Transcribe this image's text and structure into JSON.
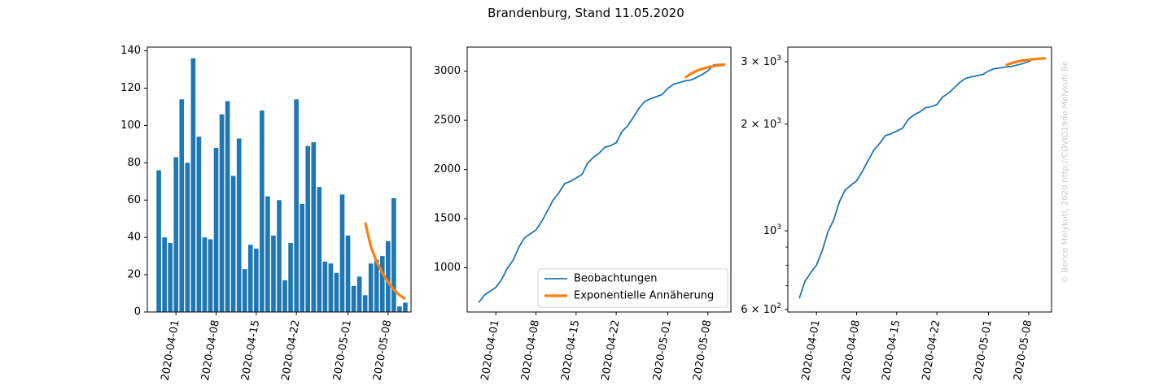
{
  "figure": {
    "title": "Brandenburg, Stand 11.05.2020",
    "watermark": "© Bence Mélykúti, 2020  http://COVID19de.Melykuti.Be"
  },
  "colors": {
    "observed": "#1f77b4",
    "fit": "#ff7f0e"
  },
  "chart_data": [
    {
      "type": "bar",
      "name": "daily-new-cases",
      "x": [
        "2020-03-29",
        "2020-03-30",
        "2020-03-31",
        "2020-04-01",
        "2020-04-02",
        "2020-04-03",
        "2020-04-04",
        "2020-04-05",
        "2020-04-06",
        "2020-04-07",
        "2020-04-08",
        "2020-04-09",
        "2020-04-10",
        "2020-04-11",
        "2020-04-12",
        "2020-04-13",
        "2020-04-14",
        "2020-04-15",
        "2020-04-16",
        "2020-04-17",
        "2020-04-18",
        "2020-04-19",
        "2020-04-20",
        "2020-04-21",
        "2020-04-22",
        "2020-04-23",
        "2020-04-24",
        "2020-04-25",
        "2020-04-26",
        "2020-04-27",
        "2020-04-28",
        "2020-04-29",
        "2020-04-30",
        "2020-05-01",
        "2020-05-02",
        "2020-05-03",
        "2020-05-04",
        "2020-05-05",
        "2020-05-06",
        "2020-05-07",
        "2020-05-08",
        "2020-05-09",
        "2020-05-10",
        "2020-05-11"
      ],
      "values": [
        76,
        40,
        37,
        83,
        114,
        80,
        136,
        94,
        40,
        39,
        88,
        106,
        113,
        73,
        93,
        23,
        36,
        34,
        108,
        62,
        41,
        60,
        17,
        37,
        114,
        58,
        89,
        91,
        67,
        27,
        26,
        21,
        63,
        41,
        14,
        19,
        9,
        26,
        28,
        30,
        38,
        61,
        3,
        5
      ],
      "fit_x": [
        "2020-05-04",
        "2020-05-05",
        "2020-05-06",
        "2020-05-07",
        "2020-05-08",
        "2020-05-09",
        "2020-05-10",
        "2020-05-11"
      ],
      "fit_values": [
        48,
        35,
        27,
        21,
        16,
        12,
        9,
        7
      ],
      "x_tick_labels": [
        "2020-04-01",
        "2020-04-08",
        "2020-04-15",
        "2020-04-22",
        "2020-05-01",
        "2020-05-08"
      ],
      "y_ticks": [
        0,
        20,
        40,
        60,
        80,
        100,
        120,
        140
      ],
      "ylim": [
        0,
        142
      ],
      "xlim": [
        "2020-03-27",
        "2020-05-12"
      ]
    },
    {
      "type": "line",
      "name": "cumulative-linear",
      "legend": {
        "placement": "lower-right",
        "entries": [
          "Beobachtungen",
          "Exponentielle Annäherung"
        ]
      },
      "x_tick_labels": [
        "2020-04-01",
        "2020-04-08",
        "2020-04-15",
        "2020-04-22",
        "2020-05-01",
        "2020-05-08"
      ],
      "y_ticks": [
        1000,
        1500,
        2000,
        2500,
        3000
      ],
      "ylim": [
        550,
        3245
      ],
      "xlim": [
        "2020-03-27",
        "2020-05-12"
      ]
    },
    {
      "type": "line",
      "name": "cumulative-log",
      "scale": "log",
      "x_tick_labels": [
        "2020-04-01",
        "2020-04-08",
        "2020-04-15",
        "2020-04-22",
        "2020-05-01",
        "2020-05-08"
      ],
      "y_ticks": [
        {
          "value": 600,
          "mantissa": "6",
          "exponent": "2"
        },
        {
          "value": 1000,
          "mantissa": "",
          "exponent": "3"
        },
        {
          "value": 2000,
          "mantissa": "2",
          "exponent": "3"
        },
        {
          "value": 3000,
          "mantissa": "3",
          "exponent": "3"
        }
      ],
      "minor_ticks": [
        700,
        800,
        900
      ],
      "ylim": [
        590,
        3300
      ],
      "xlim": [
        "2020-03-27",
        "2020-05-12"
      ]
    }
  ],
  "cumulative": {
    "x": [
      "2020-03-29",
      "2020-03-30",
      "2020-03-31",
      "2020-04-01",
      "2020-04-02",
      "2020-04-03",
      "2020-04-04",
      "2020-04-05",
      "2020-04-06",
      "2020-04-07",
      "2020-04-08",
      "2020-04-09",
      "2020-04-10",
      "2020-04-11",
      "2020-04-12",
      "2020-04-13",
      "2020-04-14",
      "2020-04-15",
      "2020-04-16",
      "2020-04-17",
      "2020-04-18",
      "2020-04-19",
      "2020-04-20",
      "2020-04-21",
      "2020-04-22",
      "2020-04-23",
      "2020-04-24",
      "2020-04-25",
      "2020-04-26",
      "2020-04-27",
      "2020-04-28",
      "2020-04-29",
      "2020-04-30",
      "2020-05-01",
      "2020-05-02",
      "2020-05-03",
      "2020-05-04",
      "2020-05-05",
      "2020-05-06",
      "2020-05-07",
      "2020-05-08",
      "2020-05-09",
      "2020-05-10",
      "2020-05-11"
    ],
    "values": [
      645,
      721,
      762,
      800,
      880,
      994,
      1074,
      1208,
      1304,
      1345,
      1384,
      1472,
      1578,
      1690,
      1763,
      1856,
      1879,
      1913,
      1947,
      2062,
      2124,
      2165,
      2225,
      2242,
      2272,
      2386,
      2444,
      2533,
      2624,
      2693,
      2720,
      2741,
      2762,
      2825,
      2869,
      2883,
      2901,
      2910,
      2936,
      2966,
      3004,
      3065,
      3069,
      3074
    ],
    "fit_x": [
      "2020-05-04",
      "2020-05-05",
      "2020-05-06",
      "2020-05-07",
      "2020-05-08",
      "2020-05-09",
      "2020-05-10",
      "2020-05-11"
    ],
    "fit_values": [
      2935,
      2974,
      3004,
      3024,
      3040,
      3052,
      3061,
      3068
    ]
  }
}
